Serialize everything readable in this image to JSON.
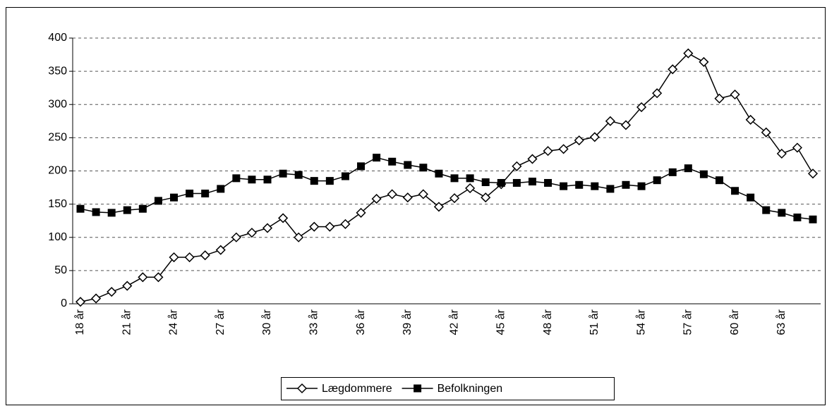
{
  "chart_data": {
    "type": "line",
    "categories": [
      "18 år",
      null,
      null,
      "21 år",
      null,
      null,
      "24 år",
      null,
      null,
      "27 år",
      null,
      null,
      "30 år",
      null,
      null,
      "33 år",
      null,
      null,
      "36 år",
      null,
      null,
      "39 år",
      null,
      null,
      "42 år",
      null,
      null,
      "45 år",
      null,
      null,
      "48 år",
      null,
      null,
      "51 år",
      null,
      null,
      "54 år",
      null,
      null,
      "57 år",
      null,
      null,
      "60 år",
      null,
      null,
      "63 år",
      null,
      null
    ],
    "series": [
      {
        "name": "Lægdommere",
        "color": "#000000",
        "marker": "diamond",
        "values": [
          3,
          8,
          18,
          27,
          40,
          40,
          70,
          70,
          73,
          81,
          100,
          107,
          114,
          129,
          100,
          116,
          116,
          120,
          137,
          158,
          165,
          160,
          165,
          146,
          159,
          174,
          160,
          180,
          207,
          218,
          230,
          233,
          246,
          251,
          275,
          269,
          296,
          317,
          353,
          377,
          364,
          309,
          315,
          277,
          258,
          226,
          235,
          196
        ]
      },
      {
        "name": "Befolkningen",
        "color": "#000000",
        "marker": "square",
        "values": [
          143,
          138,
          137,
          141,
          143,
          155,
          160,
          166,
          166,
          173,
          189,
          187,
          187,
          196,
          194,
          185,
          185,
          192,
          207,
          220,
          214,
          209,
          205,
          196,
          189,
          189,
          183,
          182,
          182,
          184,
          182,
          177,
          179,
          177,
          173,
          179,
          177,
          186,
          198,
          204,
          195,
          186,
          170,
          160,
          141,
          137,
          130,
          127
        ]
      }
    ],
    "ylim": [
      0,
      400
    ],
    "yticks": [
      0,
      50,
      100,
      150,
      200,
      250,
      300,
      350,
      400
    ],
    "grid": true,
    "legend": "bottom"
  }
}
